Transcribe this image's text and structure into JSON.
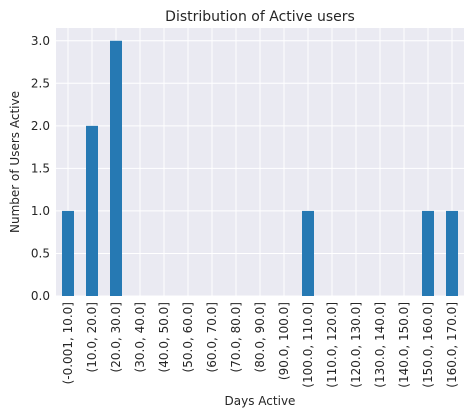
{
  "chart_data": {
    "type": "bar",
    "title": "Distribution of Active users",
    "xlabel": "Days Active",
    "ylabel": "Number of Users Active",
    "categories": [
      "(-0.001, 10.0]",
      "(10.0, 20.0]",
      "(20.0, 30.0]",
      "(30.0, 40.0]",
      "(40.0, 50.0]",
      "(50.0, 60.0]",
      "(60.0, 70.0]",
      "(70.0, 80.0]",
      "(80.0, 90.0]",
      "(90.0, 100.0]",
      "(100.0, 110.0]",
      "(110.0, 120.0]",
      "(120.0, 130.0]",
      "(130.0, 140.0]",
      "(140.0, 150.0]",
      "(150.0, 160.0]",
      "(160.0, 170.0]"
    ],
    "values": [
      1,
      2,
      3,
      0,
      0,
      0,
      0,
      0,
      0,
      0,
      1,
      0,
      0,
      0,
      0,
      1,
      1
    ],
    "ylim": [
      0,
      3.15
    ],
    "yticks": [
      "0.0",
      "0.5",
      "1.0",
      "1.5",
      "2.0",
      "2.5",
      "3.0"
    ],
    "grid": true,
    "bar_color": "#2679b3",
    "background_color": "#eaeaf2",
    "grid_color": "#ffffff"
  }
}
